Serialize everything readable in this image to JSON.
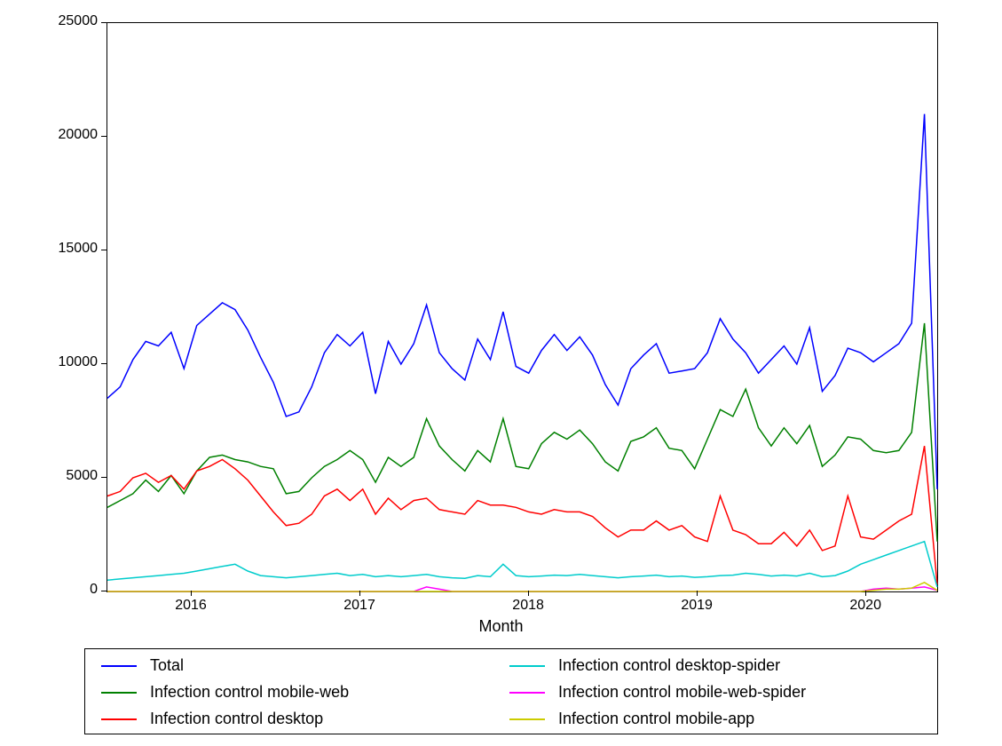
{
  "chart": {
    "type": "line",
    "xlabel": "Month",
    "background_color": "#ffffff",
    "border_color": "#000000",
    "label_fontsize": 18,
    "tick_fontsize": 16,
    "ylim": [
      0,
      25000
    ],
    "yticks": [
      0,
      5000,
      10000,
      15000,
      20000,
      25000
    ],
    "ytick_labels": [
      "0",
      "5000",
      "10000",
      "15000",
      "20000",
      "25000"
    ],
    "x_year_ticks": [
      2016,
      2017,
      2018,
      2019,
      2020
    ],
    "x_year_labels": [
      "2016",
      "2017",
      "2018",
      "2019",
      "2020"
    ],
    "x_start": 2015.5,
    "x_end": 2020.42,
    "line_width": 1.5,
    "series": [
      {
        "name": "Total",
        "color": "#0000ff",
        "values": [
          8500,
          9000,
          10200,
          11000,
          10800,
          11400,
          9800,
          11700,
          12200,
          12700,
          12400,
          11500,
          10300,
          9200,
          7700,
          7900,
          9000,
          10500,
          11300,
          10800,
          11400,
          8700,
          11000,
          10000,
          10900,
          12600,
          10500,
          9800,
          9300,
          11100,
          10200,
          12300,
          9900,
          9600,
          10600,
          11300,
          10600,
          11200,
          10400,
          9100,
          8200,
          9800,
          10400,
          10900,
          9600,
          9700,
          9800,
          10500,
          12000,
          11100,
          10500,
          9600,
          10200,
          10800,
          10000,
          11600,
          8800,
          9500,
          10700,
          10500,
          10100,
          10500,
          10900,
          11800,
          21000,
          4500
        ]
      },
      {
        "name": "Infection control mobile-web",
        "color": "#008000",
        "values": [
          3700,
          4000,
          4300,
          4900,
          4400,
          5100,
          4300,
          5300,
          5900,
          6000,
          5800,
          5700,
          5500,
          5400,
          4300,
          4400,
          5000,
          5500,
          5800,
          6200,
          5800,
          4800,
          5900,
          5500,
          5900,
          7600,
          6400,
          5800,
          5300,
          6200,
          5700,
          7600,
          5500,
          5400,
          6500,
          7000,
          6700,
          7100,
          6500,
          5700,
          5300,
          6600,
          6800,
          7200,
          6300,
          6200,
          5400,
          6700,
          8000,
          7700,
          8900,
          7200,
          6400,
          7200,
          6500,
          7300,
          5500,
          6000,
          6800,
          6700,
          6200,
          6100,
          6200,
          7000,
          11800,
          2200
        ]
      },
      {
        "name": "Infection control desktop",
        "color": "#ff0000",
        "values": [
          4200,
          4400,
          5000,
          5200,
          4800,
          5100,
          4500,
          5300,
          5500,
          5800,
          5400,
          4900,
          4200,
          3500,
          2900,
          3000,
          3400,
          4200,
          4500,
          4000,
          4500,
          3400,
          4100,
          3600,
          4000,
          4100,
          3600,
          3500,
          3400,
          4000,
          3800,
          3800,
          3700,
          3500,
          3400,
          3600,
          3500,
          3500,
          3300,
          2800,
          2400,
          2700,
          2700,
          3100,
          2700,
          2900,
          2400,
          2200,
          4200,
          2700,
          2500,
          2100,
          2100,
          2600,
          2000,
          2700,
          1800,
          2000,
          4200,
          2400,
          2300,
          2700,
          3100,
          3400,
          6400,
          300
        ]
      },
      {
        "name": "Infection control desktop-spider",
        "color": "#00cccc",
        "values": [
          500,
          550,
          600,
          650,
          700,
          750,
          800,
          900,
          1000,
          1100,
          1200,
          900,
          700,
          650,
          600,
          650,
          700,
          750,
          800,
          700,
          750,
          650,
          700,
          650,
          700,
          750,
          650,
          600,
          580,
          700,
          650,
          1200,
          700,
          650,
          680,
          720,
          700,
          750,
          700,
          650,
          600,
          650,
          680,
          720,
          650,
          680,
          620,
          650,
          700,
          720,
          800,
          750,
          680,
          720,
          680,
          800,
          650,
          700,
          900,
          1200,
          1400,
          1600,
          1800,
          2000,
          2200,
          200
        ]
      },
      {
        "name": "Infection control mobile-web-spider",
        "color": "#ff00ff",
        "values": [
          0,
          0,
          0,
          0,
          0,
          0,
          0,
          0,
          0,
          0,
          0,
          0,
          0,
          0,
          0,
          0,
          0,
          0,
          0,
          0,
          0,
          0,
          0,
          0,
          0,
          200,
          100,
          0,
          0,
          0,
          0,
          0,
          0,
          0,
          0,
          0,
          0,
          0,
          0,
          0,
          0,
          0,
          0,
          0,
          0,
          0,
          0,
          0,
          0,
          0,
          0,
          0,
          0,
          0,
          0,
          0,
          0,
          0,
          0,
          0,
          100,
          150,
          100,
          150,
          200,
          50
        ]
      },
      {
        "name": "Infection control mobile-app",
        "color": "#cccc00",
        "values": [
          0,
          0,
          0,
          0,
          0,
          0,
          0,
          0,
          0,
          0,
          0,
          0,
          0,
          0,
          0,
          0,
          0,
          0,
          0,
          0,
          0,
          0,
          0,
          0,
          0,
          0,
          0,
          0,
          0,
          0,
          0,
          0,
          0,
          0,
          0,
          0,
          0,
          0,
          0,
          0,
          0,
          0,
          0,
          0,
          0,
          0,
          0,
          0,
          0,
          0,
          0,
          0,
          0,
          0,
          0,
          0,
          0,
          0,
          0,
          0,
          50,
          100,
          100,
          150,
          400,
          50
        ]
      }
    ],
    "legend": {
      "columns": 2,
      "items": [
        {
          "label": "Total",
          "color": "#0000ff"
        },
        {
          "label": "Infection control mobile-web",
          "color": "#008000"
        },
        {
          "label": "Infection control desktop",
          "color": "#ff0000"
        },
        {
          "label": "Infection control desktop-spider",
          "color": "#00cccc"
        },
        {
          "label": "Infection control mobile-web-spider",
          "color": "#ff00ff"
        },
        {
          "label": "Infection control mobile-app",
          "color": "#cccc00"
        }
      ]
    }
  }
}
